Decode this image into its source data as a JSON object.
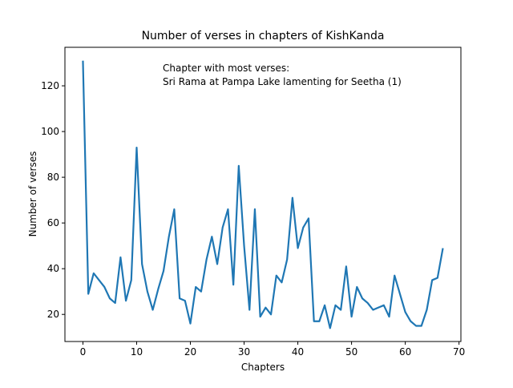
{
  "chart_data": {
    "type": "line",
    "title": "Number of verses in chapters of KishKanda",
    "annotation": [
      "Chapter with most verses:",
      "Sri Rama at Pampa Lake lamenting for Seetha (1)"
    ],
    "x_label": "Chapters",
    "y_label": "Number of verses",
    "x": [
      0,
      1,
      2,
      3,
      4,
      5,
      6,
      7,
      8,
      9,
      10,
      11,
      12,
      13,
      14,
      15,
      16,
      17,
      18,
      19,
      20,
      21,
      22,
      23,
      24,
      25,
      26,
      27,
      28,
      29,
      30,
      31,
      32,
      33,
      34,
      35,
      36,
      37,
      38,
      39,
      40,
      41,
      42,
      43,
      44,
      45,
      46,
      47,
      48,
      49,
      50,
      51,
      52,
      53,
      54,
      55,
      56,
      57,
      58,
      59,
      60,
      61,
      62,
      63,
      64,
      65,
      66,
      67
    ],
    "series": [
      {
        "name": "verses",
        "color": "#1f77b4",
        "values": [
          131,
          29,
          38,
          35,
          32,
          27,
          25,
          45,
          26,
          35,
          93,
          42,
          30,
          22,
          31,
          39,
          54,
          66,
          27,
          26,
          16,
          32,
          30,
          44,
          54,
          42,
          58,
          66,
          33,
          85,
          50,
          22,
          66,
          19,
          23,
          20,
          37,
          34,
          44,
          71,
          49,
          58,
          62,
          17,
          17,
          24,
          14,
          24,
          22,
          41,
          19,
          32,
          27,
          25,
          22,
          23,
          24,
          19,
          37,
          29,
          21,
          17,
          15,
          15,
          22,
          35,
          36,
          49
        ]
      }
    ],
    "xlim": [
      -3.35,
      70.35
    ],
    "ylim": [
      8.15,
      136.85
    ],
    "xticks": [
      0,
      10,
      20,
      30,
      40,
      50,
      60,
      70
    ],
    "yticks": [
      20,
      40,
      60,
      80,
      100,
      120
    ]
  }
}
